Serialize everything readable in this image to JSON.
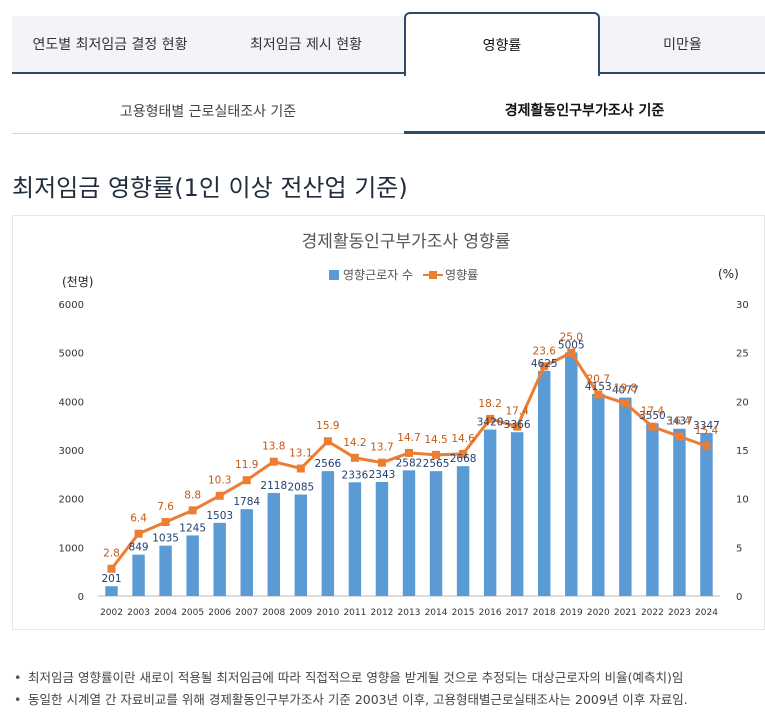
{
  "tabs": [
    {
      "label": "연도별 최저임금 결정 현황",
      "active": false
    },
    {
      "label": "최저임금 제시 현황",
      "active": false
    },
    {
      "label": "영향률",
      "active": true
    },
    {
      "label": "미만율",
      "active": false
    }
  ],
  "subtabs": [
    {
      "label": "고용형태별 근로실태조사 기준",
      "active": false
    },
    {
      "label": "경제활동인구부가조사 기준",
      "active": true
    }
  ],
  "page_title": "최저임금 영향률(1인 이상 전산업 기준)",
  "chart_data": {
    "type": "bar+line",
    "title": "경제활동인구부가조사 영향률",
    "left_axis_label": "(천명)",
    "right_axis_label": "(%)",
    "categories": [
      "2002",
      "2003",
      "2004",
      "2005",
      "2006",
      "2007",
      "2008",
      "2009",
      "2010",
      "2011",
      "2012",
      "2013",
      "2014",
      "2015",
      "2016",
      "2017",
      "2018",
      "2019",
      "2020",
      "2021",
      "2022",
      "2023",
      "2024"
    ],
    "series": [
      {
        "name": "영향근로자 수",
        "kind": "bar",
        "axis": "left",
        "color": "#5b9bd5",
        "values": [
          201,
          849,
          1035,
          1245,
          1503,
          1784,
          2118,
          2085,
          2566,
          2336,
          2343,
          2582,
          2565,
          2668,
          3420,
          3366,
          4625,
          5005,
          4153,
          4077,
          3550,
          3437,
          3347
        ]
      },
      {
        "name": "영향률",
        "kind": "line",
        "axis": "right",
        "color": "#ed7d31",
        "values": [
          2.8,
          6.4,
          7.6,
          8.8,
          10.3,
          11.9,
          13.8,
          13.1,
          15.9,
          14.2,
          13.7,
          14.7,
          14.5,
          14.6,
          18.2,
          17.4,
          23.6,
          25.0,
          20.7,
          19.8,
          17.4,
          16.4,
          15.4
        ]
      }
    ],
    "left_ylim": [
      0,
      6000
    ],
    "left_ticks": [
      0,
      1000,
      2000,
      3000,
      4000,
      5000,
      6000
    ],
    "right_ylim": [
      0,
      30
    ],
    "right_ticks": [
      0,
      5,
      10,
      15,
      20,
      25,
      30
    ],
    "bar_label_color": "#1f3f73",
    "line_label_color": "#c55a11",
    "legend_position": "top-center",
    "grid": false
  },
  "notes": [
    "최저임금 영향률이란 새로이 적용될 최저임금에 따라 직접적으로 영향을 받게될 것으로 추정되는 대상근로자의 비율(예측치)임",
    "동일한 시계열 간 자료비교를 위해 경제활동인구부가조사 기준 2003년 이후, 고용형태별근로실태조사는 2009년 이후 자료임."
  ]
}
